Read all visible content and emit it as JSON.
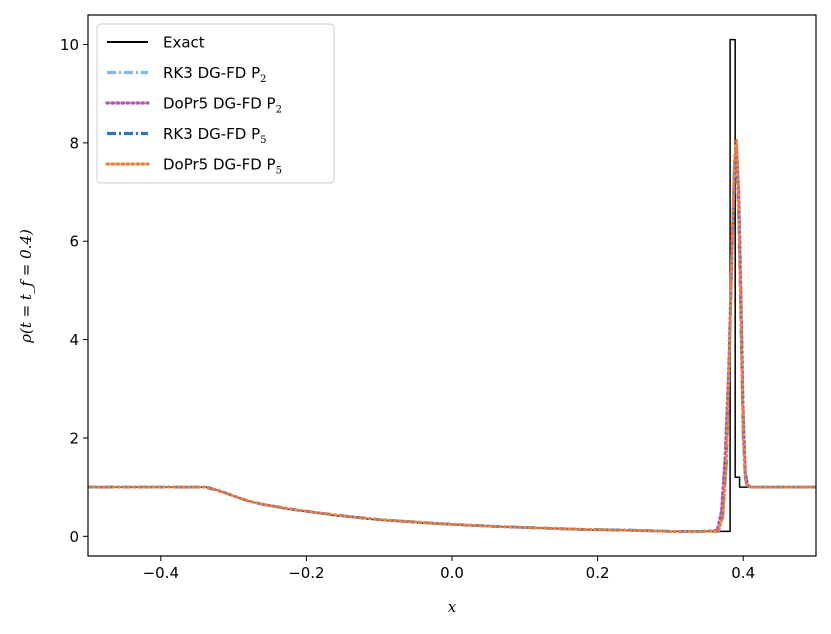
{
  "chart_data": {
    "type": "line",
    "title": "",
    "xlabel": "x",
    "ylabel": "ρ(t = t_f = 0.4)",
    "xlim": [
      -0.5,
      0.5
    ],
    "ylim": [
      -0.4,
      10.6
    ],
    "xticks": [
      -0.4,
      -0.2,
      0.0,
      0.2,
      0.4
    ],
    "xtick_labels": [
      "−0.4",
      "−0.2",
      "0.0",
      "0.2",
      "0.4"
    ],
    "yticks": [
      0,
      2,
      4,
      6,
      8,
      10
    ],
    "ytick_labels": [
      "0",
      "2",
      "4",
      "6",
      "8",
      "10"
    ],
    "grid": false,
    "legend_position": "upper-left",
    "series": [
      {
        "name": "Exact",
        "color": "#000000",
        "style": "solid-step",
        "x": [
          -0.5,
          -0.333,
          -0.32,
          -0.3,
          -0.28,
          -0.26,
          -0.24,
          -0.22,
          -0.2,
          -0.18,
          -0.16,
          -0.14,
          -0.12,
          -0.1,
          -0.08,
          -0.06,
          -0.04,
          -0.02,
          0.0,
          0.02,
          0.04,
          0.06,
          0.08,
          0.1,
          0.12,
          0.14,
          0.16,
          0.18,
          0.2,
          0.22,
          0.24,
          0.26,
          0.28,
          0.3,
          0.32,
          0.34,
          0.36,
          0.382,
          0.382,
          0.389,
          0.389,
          0.395,
          0.395,
          0.4,
          0.4,
          0.5
        ],
        "y": [
          1.0,
          1.0,
          0.92,
          0.82,
          0.72,
          0.64,
          0.59,
          0.54,
          0.5,
          0.46,
          0.42,
          0.39,
          0.36,
          0.33,
          0.31,
          0.29,
          0.27,
          0.25,
          0.24,
          0.22,
          0.21,
          0.2,
          0.19,
          0.18,
          0.17,
          0.16,
          0.15,
          0.14,
          0.13,
          0.13,
          0.12,
          0.11,
          0.11,
          0.1,
          0.1,
          0.1,
          0.1,
          0.1,
          10.1,
          10.1,
          1.2,
          1.2,
          1.0,
          1.0,
          1.0,
          1.0
        ]
      },
      {
        "name": "RK3 DG-FD P",
        "subscript": "2",
        "color": "#7fb8f0",
        "style": "dashdot",
        "x": [
          -0.5,
          -0.34,
          -0.32,
          -0.3,
          -0.28,
          -0.26,
          -0.22,
          -0.18,
          -0.14,
          -0.1,
          -0.06,
          -0.02,
          0.02,
          0.06,
          0.1,
          0.14,
          0.18,
          0.22,
          0.26,
          0.3,
          0.34,
          0.364,
          0.37,
          0.375,
          0.38,
          0.384,
          0.388,
          0.391,
          0.394,
          0.397,
          0.4,
          0.403,
          0.406,
          0.41,
          0.42,
          0.5
        ],
        "y": [
          1.0,
          1.0,
          0.93,
          0.82,
          0.72,
          0.65,
          0.55,
          0.47,
          0.4,
          0.34,
          0.3,
          0.26,
          0.23,
          0.2,
          0.18,
          0.16,
          0.14,
          0.13,
          0.12,
          0.1,
          0.1,
          0.12,
          0.5,
          1.6,
          3.4,
          5.6,
          7.3,
          7.9,
          7.0,
          5.0,
          2.6,
          1.3,
          1.05,
          1.0,
          1.0,
          1.0
        ]
      },
      {
        "name": "DoPr5 DG-FD P",
        "subscript": "2",
        "color": "#c24fad",
        "style": "dotted",
        "x": [
          -0.5,
          -0.34,
          -0.32,
          -0.3,
          -0.28,
          -0.26,
          -0.22,
          -0.18,
          -0.14,
          -0.1,
          -0.06,
          -0.02,
          0.02,
          0.06,
          0.1,
          0.14,
          0.18,
          0.22,
          0.26,
          0.3,
          0.34,
          0.364,
          0.37,
          0.375,
          0.38,
          0.384,
          0.388,
          0.391,
          0.394,
          0.397,
          0.4,
          0.403,
          0.406,
          0.41,
          0.42,
          0.5
        ],
        "y": [
          1.0,
          1.0,
          0.93,
          0.82,
          0.72,
          0.65,
          0.55,
          0.47,
          0.4,
          0.34,
          0.3,
          0.26,
          0.23,
          0.2,
          0.18,
          0.16,
          0.14,
          0.13,
          0.12,
          0.1,
          0.1,
          0.12,
          0.5,
          1.6,
          3.4,
          5.6,
          7.3,
          7.9,
          7.0,
          5.0,
          2.6,
          1.3,
          1.05,
          1.0,
          1.0,
          1.0
        ]
      },
      {
        "name": "RK3 DG-FD P",
        "subscript": "5",
        "color": "#2f78b8",
        "style": "dashdot",
        "x": [
          -0.5,
          -0.34,
          -0.32,
          -0.3,
          -0.28,
          -0.26,
          -0.22,
          -0.18,
          -0.14,
          -0.1,
          -0.06,
          -0.02,
          0.02,
          0.06,
          0.1,
          0.14,
          0.18,
          0.22,
          0.26,
          0.3,
          0.34,
          0.366,
          0.372,
          0.377,
          0.381,
          0.385,
          0.388,
          0.391,
          0.394,
          0.397,
          0.4,
          0.403,
          0.406,
          0.41,
          0.42,
          0.5
        ],
        "y": [
          1.0,
          1.0,
          0.93,
          0.82,
          0.72,
          0.65,
          0.55,
          0.47,
          0.4,
          0.34,
          0.3,
          0.26,
          0.23,
          0.2,
          0.18,
          0.16,
          0.14,
          0.13,
          0.12,
          0.1,
          0.1,
          0.1,
          0.4,
          1.5,
          3.6,
          6.0,
          7.6,
          7.8,
          6.4,
          4.2,
          2.0,
          1.15,
          1.02,
          1.0,
          1.0,
          1.0
        ]
      },
      {
        "name": "DoPr5 DG-FD P",
        "subscript": "5",
        "color": "#f07f3c",
        "style": "dotted",
        "x": [
          -0.5,
          -0.34,
          -0.32,
          -0.3,
          -0.28,
          -0.26,
          -0.22,
          -0.18,
          -0.14,
          -0.1,
          -0.06,
          -0.02,
          0.02,
          0.06,
          0.1,
          0.14,
          0.18,
          0.22,
          0.26,
          0.3,
          0.34,
          0.366,
          0.372,
          0.377,
          0.381,
          0.385,
          0.388,
          0.391,
          0.394,
          0.397,
          0.4,
          0.403,
          0.406,
          0.41,
          0.42,
          0.5
        ],
        "y": [
          1.0,
          1.0,
          0.93,
          0.82,
          0.72,
          0.65,
          0.55,
          0.47,
          0.4,
          0.34,
          0.3,
          0.26,
          0.23,
          0.2,
          0.18,
          0.16,
          0.14,
          0.13,
          0.12,
          0.1,
          0.1,
          0.1,
          0.4,
          1.5,
          3.6,
          6.1,
          7.7,
          8.05,
          6.6,
          4.3,
          2.0,
          1.15,
          1.02,
          1.0,
          1.0,
          1.0
        ]
      }
    ]
  }
}
